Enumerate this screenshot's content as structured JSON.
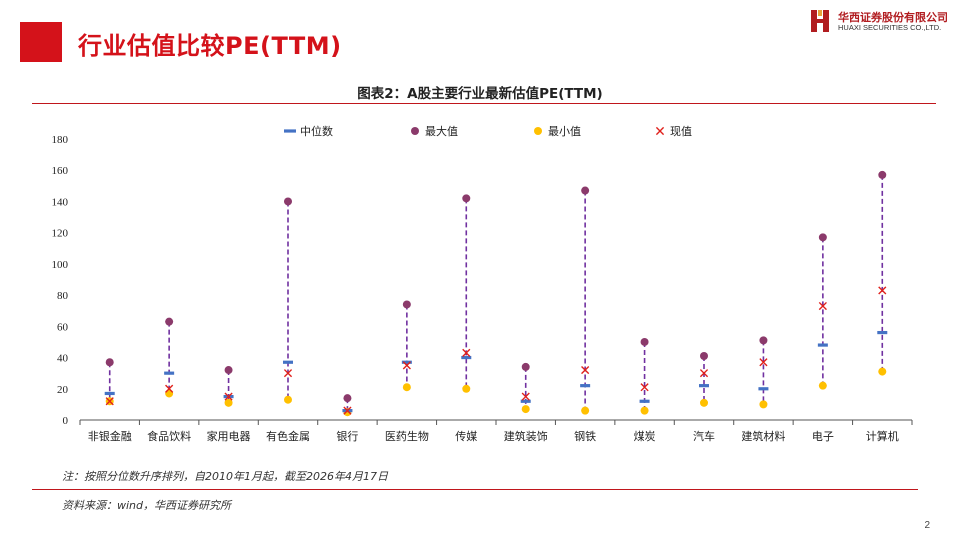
{
  "header": {
    "title": "行业估值比较PE(TTM)",
    "logo_cn": "华西证券股份有限公司",
    "logo_en": "HUAXI SECURITIES CO.,LTD."
  },
  "colors": {
    "brand_red": "#d4121a",
    "median": "#4472c4",
    "max": "#8b3a6b",
    "min": "#ffc000",
    "current": "#e0201b",
    "range_line": "#7030a0"
  },
  "chart_data": {
    "type": "scatter",
    "title": "图表2：A股主要行业最新估值PE(TTM)",
    "xlabel": "",
    "ylabel": "",
    "ylim": [
      0,
      180
    ],
    "yticks": [
      0,
      20,
      40,
      60,
      80,
      100,
      120,
      140,
      160,
      180
    ],
    "grid": false,
    "legend_position": "top",
    "categories": [
      "非银金融",
      "食品饮料",
      "家用电器",
      "有色金属",
      "银行",
      "医药生物",
      "传媒",
      "建筑装饰",
      "钢铁",
      "煤炭",
      "汽车",
      "建筑材料",
      "电子",
      "计算机"
    ],
    "series": [
      {
        "name": "中位数",
        "marker": "dash",
        "values": [
          17,
          30,
          15,
          37,
          6,
          37,
          40,
          12,
          22,
          12,
          22,
          20,
          48,
          56
        ]
      },
      {
        "name": "最大值",
        "marker": "circle",
        "values": [
          37,
          63,
          32,
          140,
          14,
          74,
          142,
          34,
          147,
          50,
          41,
          51,
          117,
          157
        ]
      },
      {
        "name": "最小值",
        "marker": "circle",
        "values": [
          12,
          17,
          11,
          13,
          5,
          21,
          20,
          7,
          6,
          6,
          11,
          10,
          22,
          31
        ]
      },
      {
        "name": "现值",
        "marker": "x",
        "values": [
          12,
          20,
          15,
          30,
          6,
          35,
          43,
          15,
          32,
          21,
          30,
          37,
          73,
          83
        ]
      }
    ]
  },
  "footer": {
    "note": "注：按照分位数升序排列，自2010年1月起，截至2026年4月17日",
    "source": "资料来源：wind，华西证券研究所",
    "page_number": "2"
  }
}
